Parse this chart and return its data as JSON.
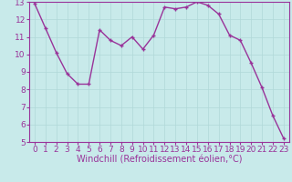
{
  "x": [
    0,
    1,
    2,
    3,
    4,
    5,
    6,
    7,
    8,
    9,
    10,
    11,
    12,
    13,
    14,
    15,
    16,
    17,
    18,
    19,
    20,
    21,
    22,
    23
  ],
  "y": [
    12.9,
    11.5,
    10.1,
    8.9,
    8.3,
    8.3,
    11.4,
    10.8,
    10.5,
    11.0,
    10.3,
    11.1,
    12.7,
    12.6,
    12.7,
    13.0,
    12.8,
    12.3,
    11.1,
    10.8,
    9.5,
    8.1,
    6.5,
    5.2
  ],
  "line_color": "#993399",
  "marker": "+",
  "bg_color": "#c8eaea",
  "grid_color": "#b0d8d8",
  "xlabel": "Windchill (Refroidissement éolien,°C)",
  "xlim": [
    -0.5,
    23.5
  ],
  "ylim": [
    5,
    13
  ],
  "yticks": [
    5,
    6,
    7,
    8,
    9,
    10,
    11,
    12,
    13
  ],
  "xticks": [
    0,
    1,
    2,
    3,
    4,
    5,
    6,
    7,
    8,
    9,
    10,
    11,
    12,
    13,
    14,
    15,
    16,
    17,
    18,
    19,
    20,
    21,
    22,
    23
  ],
  "axis_color": "#993399",
  "tick_color": "#993399",
  "label_color": "#993399",
  "font_size": 6.5,
  "xlabel_font_size": 7,
  "linewidth": 1.0,
  "markersize": 3,
  "markeredgewidth": 1.0
}
